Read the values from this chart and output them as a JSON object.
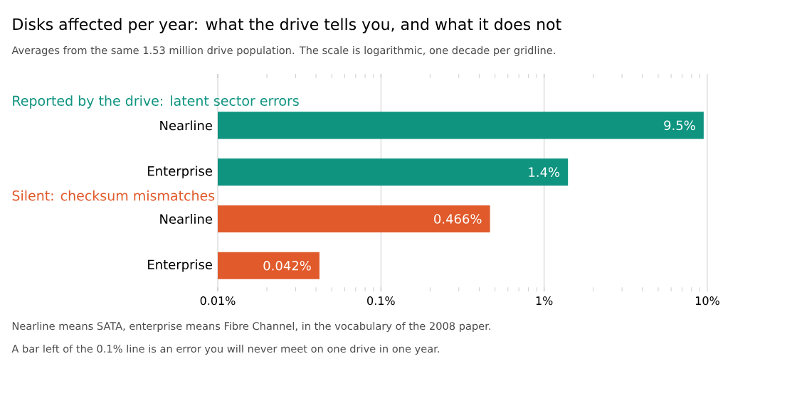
{
  "chart_data": {
    "type": "bar",
    "orientation": "horizontal",
    "log": "x",
    "grid": "x",
    "title": "Disks affected per year: what the drive tells you, and what it does not",
    "subtitle": "Averages from the same 1.53 million drive population. The scale is logarithmic, one decade per gridline.",
    "categories": [
      "Nearline",
      "Enterprise",
      "Nearline",
      "Enterprise"
    ],
    "series": [
      {
        "name": "Reported by the drive: latent sector errors",
        "color": "#0f9480",
        "values": [
          9.5,
          1.4,
          null,
          null
        ],
        "value_labels": [
          "9.5%",
          "1.4%",
          null,
          null
        ]
      },
      {
        "name": "Silent: checksum mismatches",
        "color": "#e05a2b",
        "values": [
          null,
          null,
          0.466,
          0.042
        ],
        "value_labels": [
          null,
          null,
          "0.466%",
          "0.042%"
        ]
      }
    ],
    "xlim": [
      0.01,
      10
    ],
    "xticks": [
      {
        "value": 0.01,
        "label": "0.01%"
      },
      {
        "value": 0.1,
        "label": "0.1%"
      },
      {
        "value": 1,
        "label": "1%"
      },
      {
        "value": 10,
        "label": "10%"
      }
    ],
    "annotations": [
      "Nearline means SATA, enterprise means Fibre Channel, in the vocabulary of the 2008 paper.",
      "A bar left of the 0.1% line is an error you will never meet on one drive in one year."
    ]
  }
}
